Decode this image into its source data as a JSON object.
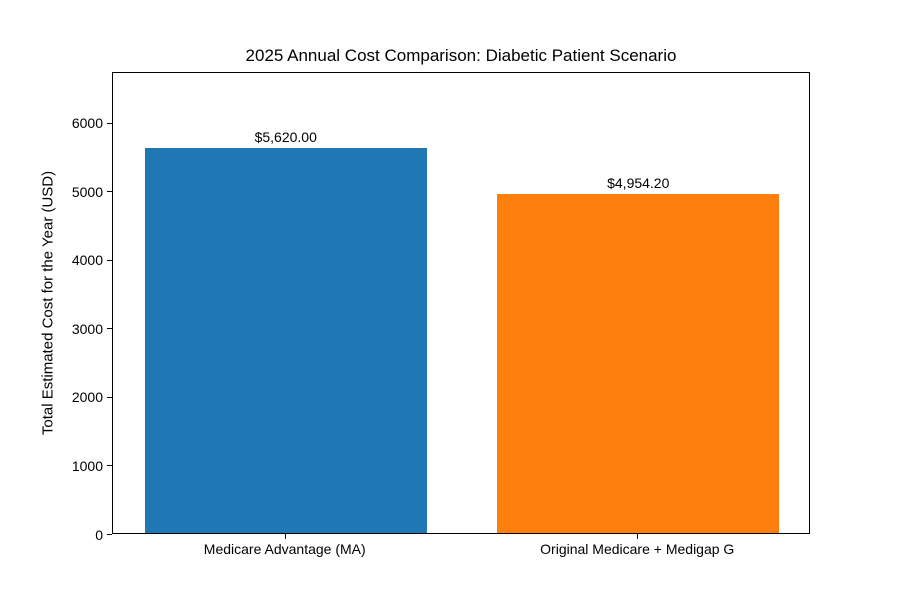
{
  "chart_data": {
    "type": "bar",
    "title": "2025 Annual Cost Comparison: Diabetic Patient Scenario",
    "xlabel": "",
    "ylabel": "Total Estimated Cost for the Year (USD)",
    "categories": [
      "Medicare Advantage (MA)",
      "Original Medicare + Medigap G"
    ],
    "values": [
      5620.0,
      4954.2
    ],
    "value_labels": [
      "$5,620.00",
      "$4,954.20"
    ],
    "bar_colors": [
      "#1f77b4",
      "#ff7f0e"
    ],
    "ylim": [
      0,
      6744
    ],
    "yticks": [
      0,
      1000,
      2000,
      3000,
      4000,
      5000,
      6000
    ],
    "grid": false,
    "legend": "none",
    "background_color": "#ffffff",
    "text_color": "#000000"
  }
}
